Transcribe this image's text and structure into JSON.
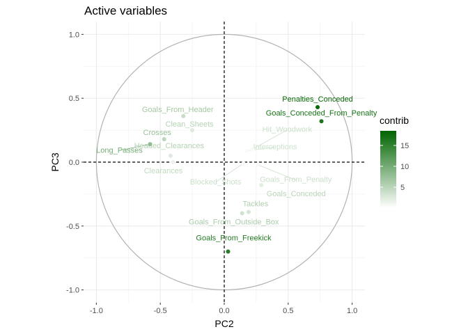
{
  "chart_data": {
    "type": "scatter",
    "title": "Active variables",
    "xlabel": "PC2",
    "ylabel": "PC3",
    "xlim": [
      -1.1,
      1.1
    ],
    "ylim": [
      -1.1,
      1.1
    ],
    "x_ticks": [
      -1.0,
      -0.5,
      0.0,
      0.5,
      1.0
    ],
    "y_ticks": [
      -1.0,
      -0.5,
      0.0,
      0.5,
      1.0
    ],
    "x_tick_labels": [
      "-1.0",
      "-0.5",
      "0.0",
      "0.5",
      "1.0"
    ],
    "y_tick_labels": [
      "-1.0",
      "-0.5",
      "0.0",
      "0.5",
      "1.0"
    ],
    "grid": true,
    "unit_circle": true,
    "zero_lines": true,
    "legend": {
      "title": "contrib",
      "position": "right",
      "ticks": [
        5,
        10,
        15
      ],
      "tick_labels": [
        "5",
        "10",
        "15"
      ],
      "range": [
        0,
        18.5
      ],
      "color_low": "#ffffff",
      "color_high": "#006400"
    },
    "points": [
      {
        "label": "Penalties_Conceded",
        "x": 0.73,
        "y": 0.43,
        "contrib": 18.0
      },
      {
        "label": "Goals_Conceded_From_Penalty",
        "x": 0.76,
        "y": 0.32,
        "contrib": 16.5
      },
      {
        "label": "Goals_From_Header",
        "x": -0.32,
        "y": 0.36,
        "contrib": 4.0
      },
      {
        "label": "Clean_Sheets",
        "x": -0.25,
        "y": 0.25,
        "contrib": 2.5
      },
      {
        "label": "Crosses",
        "x": -0.47,
        "y": 0.18,
        "contrib": 5.0
      },
      {
        "label": "Headed_Clearances",
        "x": -0.42,
        "y": 0.05,
        "contrib": 2.5
      },
      {
        "label": "Long_Passes",
        "x": -0.58,
        "y": 0.14,
        "contrib": 8.0
      },
      {
        "label": "Clearances",
        "x": -0.4,
        "y": 0.0,
        "contrib": 1.5
      },
      {
        "label": "Hit_Woodwork",
        "x": 0.22,
        "y": 0.1,
        "contrib": 0.5
      },
      {
        "label": "Interceptions",
        "x": 0.18,
        "y": 0.09,
        "contrib": 0.5
      },
      {
        "label": "Blocked_Shots",
        "x": 0.15,
        "y": -0.01,
        "contrib": 0.6
      },
      {
        "label": "Goals_From_Penalty",
        "x": 0.26,
        "y": -0.02,
        "contrib": 0.5
      },
      {
        "label": "Goals_Conceded",
        "x": 0.29,
        "y": -0.18,
        "contrib": 2.0
      },
      {
        "label": "Tackles",
        "x": 0.19,
        "y": -0.39,
        "contrib": 3.0
      },
      {
        "label": "Goals_From_Outside_Box",
        "x": 0.14,
        "y": -0.4,
        "contrib": 3.5
      },
      {
        "label": "Goals_From_Freekick",
        "x": 0.03,
        "y": -0.7,
        "contrib": 15.5
      }
    ]
  }
}
